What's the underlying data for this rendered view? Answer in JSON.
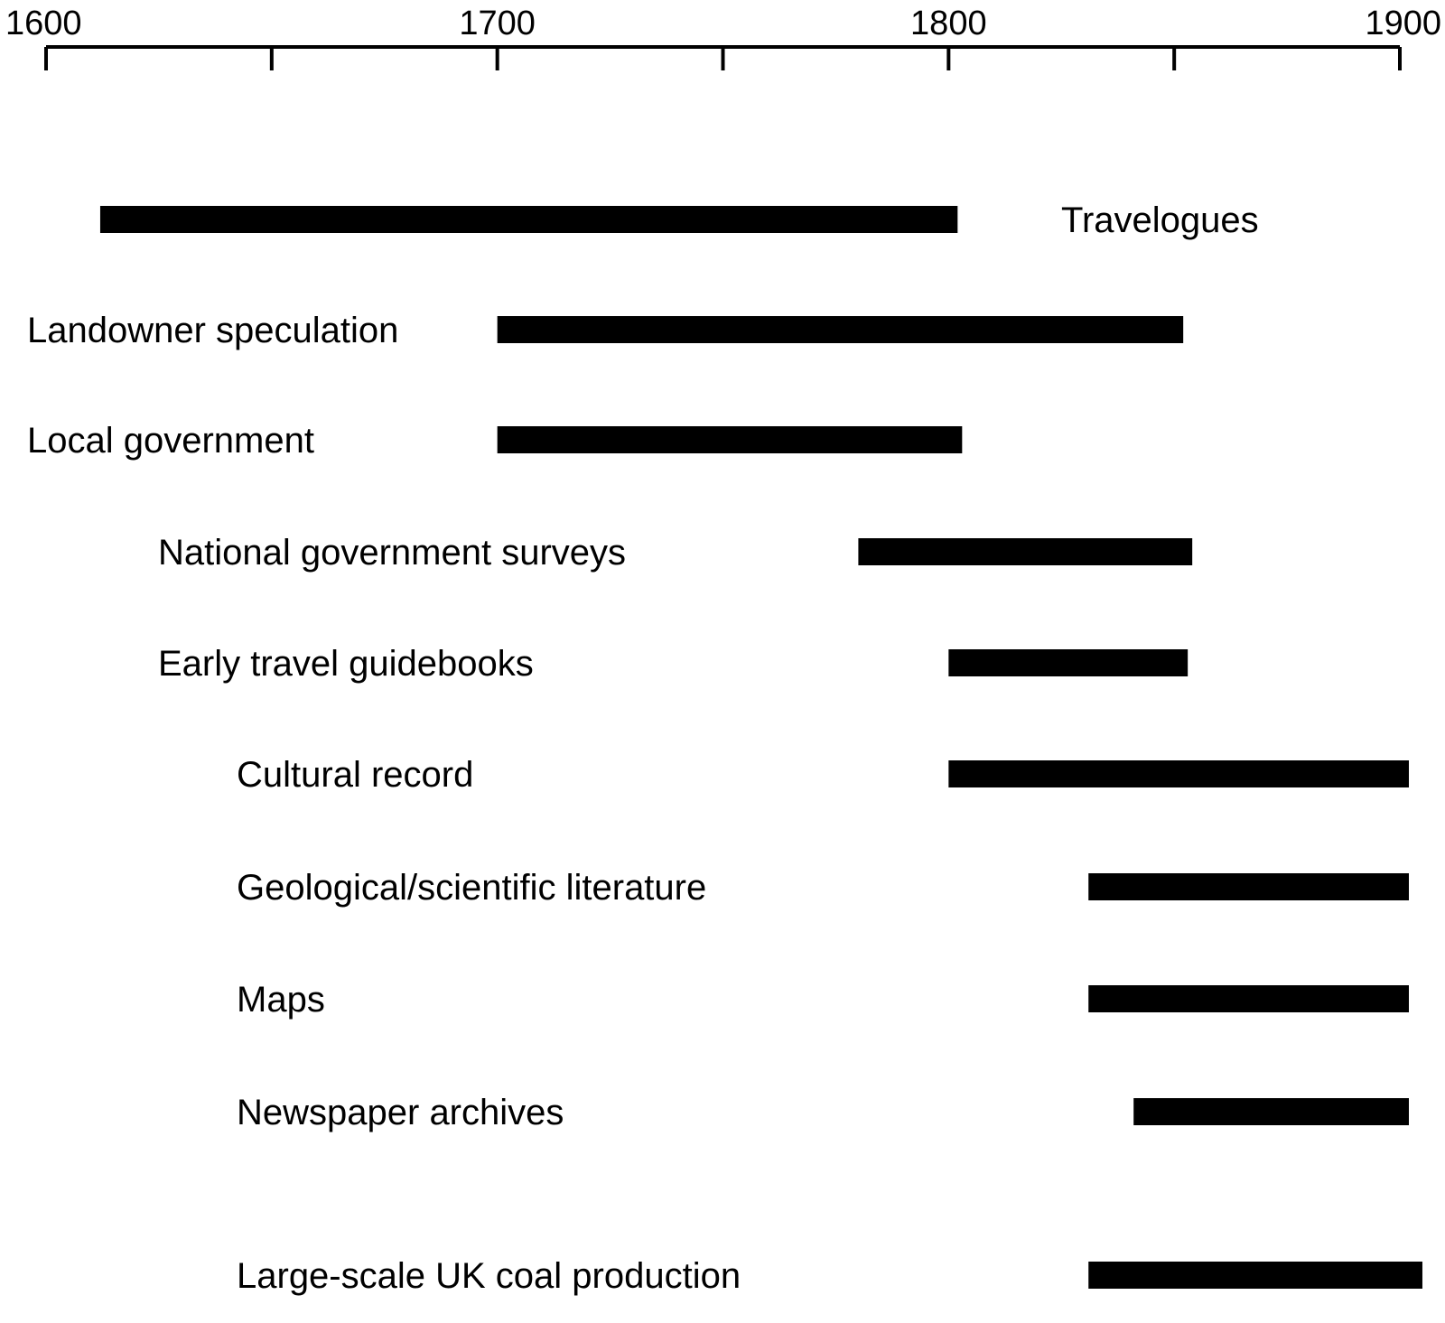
{
  "chart_data": {
    "type": "timeline",
    "title": "",
    "xlabel": "",
    "ylabel": "",
    "xlim": [
      1600,
      1900
    ],
    "major_ticks": [
      1600,
      1700,
      1800,
      1900
    ],
    "major_tick_labels": [
      "1600",
      "1700",
      "1800",
      "1900"
    ],
    "minor_ticks": [
      1650,
      1750,
      1850
    ],
    "grid": false,
    "legend": "none",
    "series": [
      {
        "name": "Travelogues",
        "start": 1612,
        "end": 1802,
        "label_side": "right"
      },
      {
        "name": "Landowner speculation",
        "start": 1700,
        "end": 1852,
        "label_side": "left"
      },
      {
        "name": "Local government",
        "start": 1700,
        "end": 1803,
        "label_side": "left"
      },
      {
        "name": "National government surveys",
        "start": 1780,
        "end": 1854,
        "label_side": "left"
      },
      {
        "name": "Early travel guidebooks",
        "start": 1800,
        "end": 1853,
        "label_side": "left"
      },
      {
        "name": "Cultural record",
        "start": 1800,
        "end": 1902,
        "label_side": "left"
      },
      {
        "name": "Geological/scientific literature",
        "start": 1831,
        "end": 1902,
        "label_side": "left"
      },
      {
        "name": "Maps",
        "start": 1831,
        "end": 1902,
        "label_side": "left"
      },
      {
        "name": "Newspaper archives",
        "start": 1841,
        "end": 1902,
        "label_side": "left"
      },
      {
        "name": "Large-scale UK coal production",
        "start": 1831,
        "end": 1905,
        "label_side": "left"
      }
    ],
    "colors": {
      "bar": "#000000",
      "axis": "#000000"
    }
  }
}
